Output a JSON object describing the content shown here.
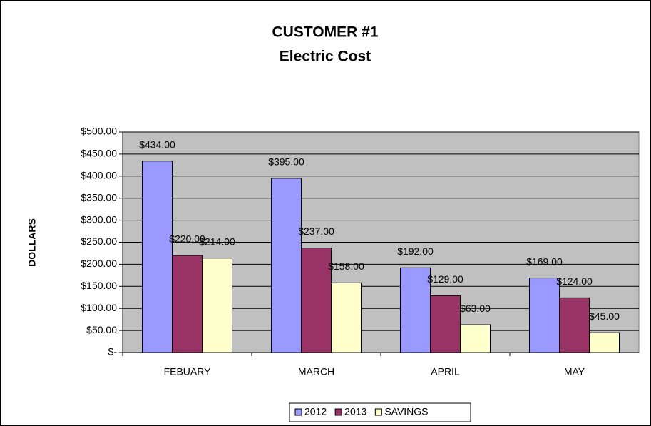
{
  "chart_data": {
    "type": "bar",
    "title": "CUSTOMER #1",
    "subtitle": "Electric Cost",
    "y_label": "DOLLARS",
    "categories": [
      "FEBUARY",
      "MARCH",
      "APRIL",
      "MAY"
    ],
    "series": [
      {
        "name": "2012",
        "color": "#9999ff",
        "values": [
          434,
          395,
          192,
          169
        ],
        "value_labels": [
          "$434.00",
          "$395.00",
          "$192.00",
          "$169.00"
        ]
      },
      {
        "name": "2013",
        "color": "#993366",
        "values": [
          220,
          237,
          129,
          124
        ],
        "value_labels": [
          "$220.00",
          "$237.00",
          "$129.00",
          "$124.00"
        ]
      },
      {
        "name": "SAVINGS",
        "color": "#ffffcc",
        "values": [
          214,
          158,
          63,
          45
        ],
        "value_labels": [
          "$214.00",
          "$158.00",
          "$63.00",
          "$45.00"
        ]
      }
    ],
    "ylim": [
      0,
      500
    ],
    "yticks": [
      {
        "value": 0,
        "label": "$-"
      },
      {
        "value": 50,
        "label": "$50.00"
      },
      {
        "value": 100,
        "label": "$100.00"
      },
      {
        "value": 150,
        "label": "$150.00"
      },
      {
        "value": 200,
        "label": "$200.00"
      },
      {
        "value": 250,
        "label": "$250.00"
      },
      {
        "value": 300,
        "label": "$300.00"
      },
      {
        "value": 350,
        "label": "$350.00"
      },
      {
        "value": 400,
        "label": "$400.00"
      },
      {
        "value": 450,
        "label": "$450.00"
      },
      {
        "value": 500,
        "label": "$500.00"
      }
    ],
    "grid": true,
    "legend": "bottom",
    "plot_background": "#c0c0c0"
  }
}
